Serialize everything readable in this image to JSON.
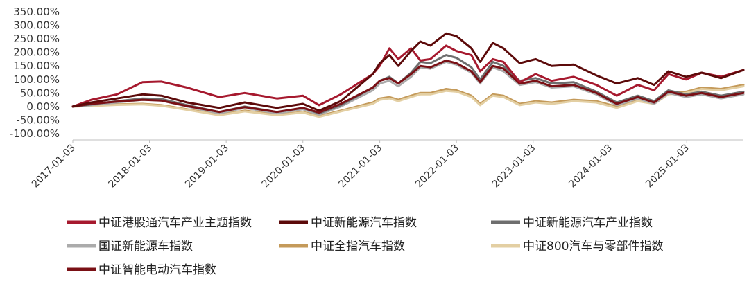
{
  "chart_data": {
    "type": "line",
    "y_unit": "%",
    "ylim": [
      -100,
      350
    ],
    "y_ticks": [
      "350.00%",
      "300.00%",
      "250.00%",
      "200.00%",
      "150.00%",
      "100.00%",
      "50.00%",
      "0.00%",
      "-50.00%",
      "-100.00%"
    ],
    "x_ticks": [
      "2017-01-03",
      "2018-01-03",
      "2019-01-03",
      "2020-01-03",
      "2021-01-03",
      "2022-01-03",
      "2023-01-03",
      "2024-01-03",
      "2025-01-03"
    ],
    "xlim": [
      "2017-01-03",
      "2025-09-30"
    ],
    "grid": false,
    "legend_position": "bottom",
    "series": [
      {
        "name": "中证港股通汽车产业主题指数",
        "color": "#A6192E",
        "width": 3,
        "points": [
          [
            "2017-01-03",
            0
          ],
          [
            "2017-04-01",
            25
          ],
          [
            "2017-08-01",
            45
          ],
          [
            "2017-12-01",
            90
          ],
          [
            "2018-03-01",
            92
          ],
          [
            "2018-07-01",
            70
          ],
          [
            "2018-12-01",
            35
          ],
          [
            "2019-04-01",
            50
          ],
          [
            "2019-09-01",
            30
          ],
          [
            "2020-01-03",
            40
          ],
          [
            "2020-03-20",
            5
          ],
          [
            "2020-07-01",
            45
          ],
          [
            "2020-12-01",
            120
          ],
          [
            "2021-01-03",
            150
          ],
          [
            "2021-02-18",
            215
          ],
          [
            "2021-04-01",
            175
          ],
          [
            "2021-06-01",
            215
          ],
          [
            "2021-07-15",
            170
          ],
          [
            "2021-09-01",
            175
          ],
          [
            "2021-11-15",
            225
          ],
          [
            "2022-01-03",
            205
          ],
          [
            "2022-03-15",
            190
          ],
          [
            "2022-04-26",
            130
          ],
          [
            "2022-06-25",
            175
          ],
          [
            "2022-08-15",
            165
          ],
          [
            "2022-10-31",
            90
          ],
          [
            "2023-01-15",
            120
          ],
          [
            "2023-04-01",
            95
          ],
          [
            "2023-07-15",
            110
          ],
          [
            "2023-10-31",
            80
          ],
          [
            "2024-02-05",
            40
          ],
          [
            "2024-05-15",
            80
          ],
          [
            "2024-08-01",
            60
          ],
          [
            "2024-10-08",
            120
          ],
          [
            "2024-12-31",
            100
          ],
          [
            "2025-03-15",
            125
          ],
          [
            "2025-06-15",
            110
          ],
          [
            "2025-09-30",
            135
          ]
        ]
      },
      {
        "name": "中证新能源汽车指数",
        "color": "#5C0A0A",
        "width": 3,
        "points": [
          [
            "2017-01-03",
            0
          ],
          [
            "2017-04-01",
            15
          ],
          [
            "2017-08-01",
            30
          ],
          [
            "2017-12-01",
            45
          ],
          [
            "2018-03-01",
            40
          ],
          [
            "2018-07-01",
            15
          ],
          [
            "2018-12-01",
            -5
          ],
          [
            "2019-04-01",
            15
          ],
          [
            "2019-09-01",
            -5
          ],
          [
            "2020-01-03",
            10
          ],
          [
            "2020-03-20",
            -15
          ],
          [
            "2020-07-01",
            20
          ],
          [
            "2020-12-01",
            120
          ],
          [
            "2021-01-03",
            160
          ],
          [
            "2021-02-18",
            190
          ],
          [
            "2021-04-01",
            150
          ],
          [
            "2021-06-01",
            205
          ],
          [
            "2021-07-15",
            240
          ],
          [
            "2021-09-01",
            225
          ],
          [
            "2021-11-15",
            270
          ],
          [
            "2022-01-03",
            260
          ],
          [
            "2022-03-15",
            215
          ],
          [
            "2022-04-26",
            165
          ],
          [
            "2022-06-25",
            235
          ],
          [
            "2022-08-15",
            215
          ],
          [
            "2022-10-31",
            160
          ],
          [
            "2023-01-15",
            175
          ],
          [
            "2023-04-01",
            150
          ],
          [
            "2023-07-15",
            155
          ],
          [
            "2023-10-31",
            115
          ],
          [
            "2024-02-05",
            85
          ],
          [
            "2024-05-15",
            105
          ],
          [
            "2024-08-01",
            80
          ],
          [
            "2024-10-08",
            130
          ],
          [
            "2024-12-31",
            110
          ],
          [
            "2025-03-15",
            125
          ],
          [
            "2025-06-15",
            105
          ],
          [
            "2025-09-30",
            135
          ]
        ]
      },
      {
        "name": "中证新能源汽车产业指数",
        "color": "#6E6E6E",
        "width": 3,
        "points": [
          [
            "2017-01-03",
            0
          ],
          [
            "2017-04-01",
            8
          ],
          [
            "2017-08-01",
            20
          ],
          [
            "2017-12-01",
            30
          ],
          [
            "2018-03-01",
            28
          ],
          [
            "2018-07-01",
            5
          ],
          [
            "2018-12-01",
            -20
          ],
          [
            "2019-04-01",
            0
          ],
          [
            "2019-09-01",
            -20
          ],
          [
            "2020-01-03",
            -5
          ],
          [
            "2020-03-20",
            -25
          ],
          [
            "2020-07-01",
            5
          ],
          [
            "2020-12-01",
            70
          ],
          [
            "2021-01-03",
            95
          ],
          [
            "2021-02-18",
            110
          ],
          [
            "2021-04-01",
            85
          ],
          [
            "2021-06-01",
            125
          ],
          [
            "2021-07-15",
            165
          ],
          [
            "2021-09-01",
            160
          ],
          [
            "2021-11-15",
            190
          ],
          [
            "2022-01-03",
            180
          ],
          [
            "2022-03-15",
            145
          ],
          [
            "2022-04-26",
            100
          ],
          [
            "2022-06-25",
            165
          ],
          [
            "2022-08-15",
            150
          ],
          [
            "2022-10-31",
            95
          ],
          [
            "2023-01-15",
            105
          ],
          [
            "2023-04-01",
            85
          ],
          [
            "2023-07-15",
            90
          ],
          [
            "2023-10-31",
            55
          ],
          [
            "2024-02-05",
            15
          ],
          [
            "2024-05-15",
            40
          ],
          [
            "2024-08-01",
            20
          ],
          [
            "2024-10-08",
            60
          ],
          [
            "2024-12-31",
            45
          ],
          [
            "2025-03-15",
            55
          ],
          [
            "2025-06-15",
            40
          ],
          [
            "2025-09-30",
            55
          ]
        ]
      },
      {
        "name": "国证新能源车指数",
        "color": "#ABABAB",
        "width": 3,
        "points": [
          [
            "2017-01-03",
            0
          ],
          [
            "2017-04-01",
            5
          ],
          [
            "2017-08-01",
            15
          ],
          [
            "2017-12-01",
            25
          ],
          [
            "2018-03-01",
            22
          ],
          [
            "2018-07-01",
            0
          ],
          [
            "2018-12-01",
            -25
          ],
          [
            "2019-04-01",
            -5
          ],
          [
            "2019-09-01",
            -25
          ],
          [
            "2020-01-03",
            -10
          ],
          [
            "2020-03-20",
            -30
          ],
          [
            "2020-07-01",
            0
          ],
          [
            "2020-12-01",
            60
          ],
          [
            "2021-01-03",
            85
          ],
          [
            "2021-02-18",
            95
          ],
          [
            "2021-04-01",
            75
          ],
          [
            "2021-06-01",
            110
          ],
          [
            "2021-07-15",
            145
          ],
          [
            "2021-09-01",
            140
          ],
          [
            "2021-11-15",
            165
          ],
          [
            "2022-01-03",
            155
          ],
          [
            "2022-03-15",
            125
          ],
          [
            "2022-04-26",
            85
          ],
          [
            "2022-06-25",
            145
          ],
          [
            "2022-08-15",
            130
          ],
          [
            "2022-10-31",
            80
          ],
          [
            "2023-01-15",
            90
          ],
          [
            "2023-04-01",
            70
          ],
          [
            "2023-07-15",
            75
          ],
          [
            "2023-10-31",
            45
          ],
          [
            "2024-02-05",
            5
          ],
          [
            "2024-05-15",
            30
          ],
          [
            "2024-08-01",
            10
          ],
          [
            "2024-10-08",
            50
          ],
          [
            "2024-12-31",
            35
          ],
          [
            "2025-03-15",
            45
          ],
          [
            "2025-06-15",
            30
          ],
          [
            "2025-09-30",
            45
          ]
        ]
      },
      {
        "name": "中证全指汽车指数",
        "color": "#C49A5A",
        "width": 3,
        "points": [
          [
            "2017-01-03",
            0
          ],
          [
            "2017-04-01",
            3
          ],
          [
            "2017-08-01",
            8
          ],
          [
            "2017-12-01",
            10
          ],
          [
            "2018-03-01",
            5
          ],
          [
            "2018-07-01",
            -10
          ],
          [
            "2018-12-01",
            -30
          ],
          [
            "2019-04-01",
            -15
          ],
          [
            "2019-09-01",
            -30
          ],
          [
            "2020-01-03",
            -20
          ],
          [
            "2020-03-20",
            -35
          ],
          [
            "2020-07-01",
            -15
          ],
          [
            "2020-12-01",
            15
          ],
          [
            "2021-01-03",
            30
          ],
          [
            "2021-02-18",
            35
          ],
          [
            "2021-04-01",
            25
          ],
          [
            "2021-06-01",
            40
          ],
          [
            "2021-07-15",
            50
          ],
          [
            "2021-09-01",
            50
          ],
          [
            "2021-11-15",
            65
          ],
          [
            "2022-01-03",
            60
          ],
          [
            "2022-03-15",
            40
          ],
          [
            "2022-04-26",
            10
          ],
          [
            "2022-06-25",
            45
          ],
          [
            "2022-08-15",
            40
          ],
          [
            "2022-10-31",
            10
          ],
          [
            "2023-01-15",
            20
          ],
          [
            "2023-04-01",
            15
          ],
          [
            "2023-07-15",
            25
          ],
          [
            "2023-10-31",
            20
          ],
          [
            "2024-02-05",
            0
          ],
          [
            "2024-05-15",
            25
          ],
          [
            "2024-08-01",
            15
          ],
          [
            "2024-10-08",
            50
          ],
          [
            "2024-12-31",
            55
          ],
          [
            "2025-03-15",
            70
          ],
          [
            "2025-06-15",
            65
          ],
          [
            "2025-09-30",
            80
          ]
        ]
      },
      {
        "name": "中证800汽车与零部件指数",
        "color": "#E3CFA3",
        "width": 3,
        "points": [
          [
            "2017-01-03",
            0
          ],
          [
            "2017-04-01",
            2
          ],
          [
            "2017-08-01",
            6
          ],
          [
            "2017-12-01",
            8
          ],
          [
            "2018-03-01",
            3
          ],
          [
            "2018-07-01",
            -12
          ],
          [
            "2018-12-01",
            -32
          ],
          [
            "2019-04-01",
            -18
          ],
          [
            "2019-09-01",
            -32
          ],
          [
            "2020-01-03",
            -22
          ],
          [
            "2020-03-20",
            -38
          ],
          [
            "2020-07-01",
            -18
          ],
          [
            "2020-12-01",
            10
          ],
          [
            "2021-01-03",
            25
          ],
          [
            "2021-02-18",
            30
          ],
          [
            "2021-04-01",
            20
          ],
          [
            "2021-06-01",
            35
          ],
          [
            "2021-07-15",
            45
          ],
          [
            "2021-09-01",
            45
          ],
          [
            "2021-11-15",
            58
          ],
          [
            "2022-01-03",
            55
          ],
          [
            "2022-03-15",
            35
          ],
          [
            "2022-04-26",
            5
          ],
          [
            "2022-06-25",
            40
          ],
          [
            "2022-08-15",
            35
          ],
          [
            "2022-10-31",
            5
          ],
          [
            "2023-01-15",
            15
          ],
          [
            "2023-04-01",
            10
          ],
          [
            "2023-07-15",
            20
          ],
          [
            "2023-10-31",
            15
          ],
          [
            "2024-02-05",
            -5
          ],
          [
            "2024-05-15",
            20
          ],
          [
            "2024-08-01",
            10
          ],
          [
            "2024-10-08",
            45
          ],
          [
            "2024-12-31",
            50
          ],
          [
            "2025-03-15",
            65
          ],
          [
            "2025-06-15",
            60
          ],
          [
            "2025-09-30",
            75
          ]
        ]
      },
      {
        "name": "中证智能电动汽车指数",
        "color": "#7A1015",
        "width": 3,
        "points": [
          [
            "2017-01-03",
            0
          ],
          [
            "2017-04-01",
            10
          ],
          [
            "2017-08-01",
            18
          ],
          [
            "2017-12-01",
            25
          ],
          [
            "2018-03-01",
            22
          ],
          [
            "2018-07-01",
            2
          ],
          [
            "2018-12-01",
            -20
          ],
          [
            "2019-04-01",
            -2
          ],
          [
            "2019-09-01",
            -20
          ],
          [
            "2020-01-03",
            -5
          ],
          [
            "2020-03-20",
            -22
          ],
          [
            "2020-07-01",
            10
          ],
          [
            "2020-12-01",
            70
          ],
          [
            "2021-01-03",
            95
          ],
          [
            "2021-02-18",
            105
          ],
          [
            "2021-04-01",
            85
          ],
          [
            "2021-06-01",
            120
          ],
          [
            "2021-07-15",
            150
          ],
          [
            "2021-09-01",
            145
          ],
          [
            "2021-11-15",
            170
          ],
          [
            "2022-01-03",
            160
          ],
          [
            "2022-03-15",
            130
          ],
          [
            "2022-04-26",
            90
          ],
          [
            "2022-06-25",
            150
          ],
          [
            "2022-08-15",
            140
          ],
          [
            "2022-10-31",
            85
          ],
          [
            "2023-01-15",
            95
          ],
          [
            "2023-04-01",
            75
          ],
          [
            "2023-07-15",
            80
          ],
          [
            "2023-10-31",
            50
          ],
          [
            "2024-02-05",
            10
          ],
          [
            "2024-05-15",
            35
          ],
          [
            "2024-08-01",
            15
          ],
          [
            "2024-10-08",
            55
          ],
          [
            "2024-12-31",
            40
          ],
          [
            "2025-03-15",
            50
          ],
          [
            "2025-06-15",
            35
          ],
          [
            "2025-09-30",
            50
          ]
        ]
      }
    ]
  }
}
